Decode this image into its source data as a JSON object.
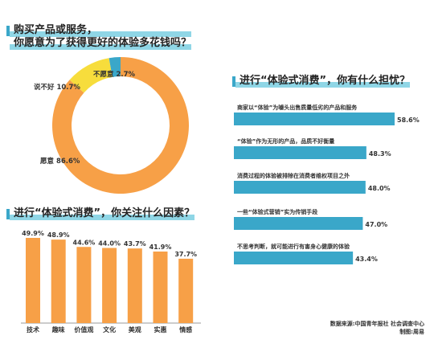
{
  "sections": {
    "donut_title": [
      "购买产品或服务，",
      "你愿意为了获得更好的体验多花钱吗？"
    ],
    "factors_title": "进行“体验式消费”，你关注什么因素？",
    "worries_title": "进行“体验式消费”，你有什么担忧？"
  },
  "footer": {
    "source": "数据来源:中国青年报社 社会调查中心",
    "credit": "制图:周易"
  },
  "colors": {
    "accent_orange": "#f7a047",
    "accent_yellow": "#f7dd3c",
    "accent_blue": "#3aa7c9",
    "highlight_cyan": "#8fd6e6"
  },
  "chart_data": [
    {
      "type": "pie",
      "style": "donut",
      "categories": [
        "愿意",
        "说不好",
        "不愿意"
      ],
      "values": [
        86.6,
        10.7,
        2.7
      ],
      "labels": [
        "愿意 86.6%",
        "说不好 10.7%",
        "不愿意 2.7%"
      ],
      "colors": [
        "#f7a047",
        "#f7dd3c",
        "#3aa7c9"
      ]
    },
    {
      "type": "bar",
      "orientation": "vertical",
      "categories": [
        "技术",
        "趣味",
        "价值观",
        "文化",
        "美观",
        "实惠",
        "情感"
      ],
      "values": [
        49.9,
        48.9,
        44.6,
        44.0,
        43.7,
        41.9,
        37.7
      ],
      "value_labels": [
        "49.9%",
        "48.9%",
        "44.6%",
        "44.0%",
        "43.7%",
        "41.9%",
        "37.7%"
      ],
      "ylim": [
        0,
        55
      ],
      "grid": false
    },
    {
      "type": "bar",
      "orientation": "horizontal",
      "categories": [
        "商家以“体验”为噱头出售质量低劣的产品和服务",
        "“体验”作为无形的产品，品质不好衡量",
        "消费过程的体验被排除在消费者维权项目之外",
        "一些“体验式营销”实为传销手段",
        "不思考判断，就可能进行有害身心健康的体验"
      ],
      "values": [
        58.6,
        48.3,
        48.0,
        47.0,
        43.4
      ],
      "value_labels": [
        "58.6%",
        "48.3%",
        "48.0%",
        "47.0%",
        "43.4%"
      ],
      "xlim": [
        0,
        60
      ],
      "grid": false
    }
  ]
}
